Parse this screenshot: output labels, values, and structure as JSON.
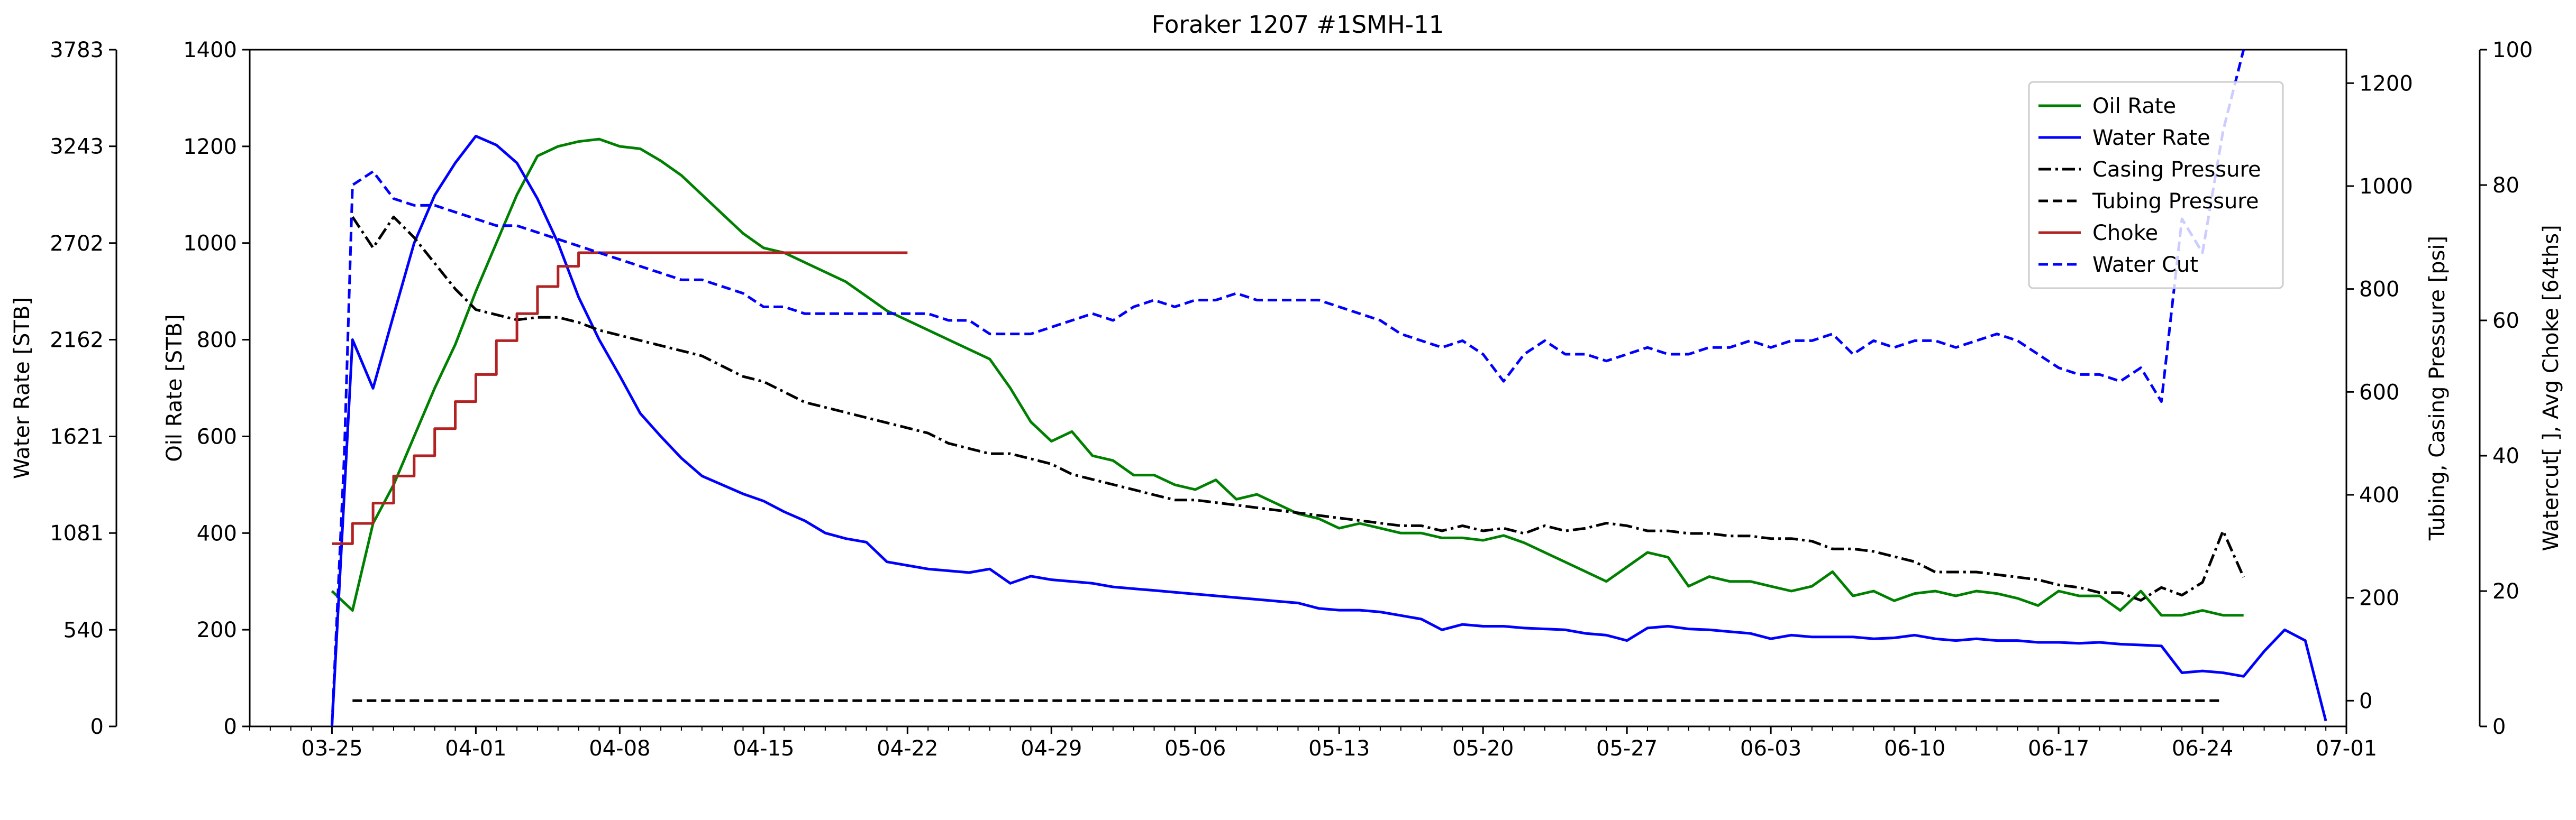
{
  "chart_data": {
    "type": "line",
    "title": "Foraker 1207 #1SMH-11",
    "x_ticks": [
      "03-25",
      "04-01",
      "04-08",
      "04-15",
      "04-22",
      "04-29",
      "05-06",
      "05-13",
      "05-20",
      "05-27",
      "06-03",
      "06-10",
      "06-17",
      "06-24",
      "07-01"
    ],
    "x_range": [
      -4,
      98
    ],
    "axes": {
      "water_rate": {
        "label": "Water Rate [STB]",
        "range": [
          0,
          3783
        ],
        "ticks": [
          0,
          540,
          1081,
          1621,
          2162,
          2702,
          3243,
          3783
        ]
      },
      "oil_rate": {
        "label": "Oil Rate [STB]",
        "range": [
          0,
          1400
        ],
        "ticks": [
          0,
          200,
          400,
          600,
          800,
          1000,
          1200,
          1400
        ]
      },
      "pressure": {
        "label": "Tubing, Casing Pressure [psi]",
        "range": [
          -50,
          1265
        ],
        "ticks": [
          0,
          200,
          400,
          600,
          800,
          1000,
          1200
        ]
      },
      "watercut_choke": {
        "label": "Watercut[ ], Avg Choke [64ths]",
        "range": [
          0,
          100
        ],
        "ticks": [
          0,
          20,
          40,
          60,
          80,
          100
        ]
      }
    },
    "legend": {
      "position": "top-right"
    },
    "series": [
      {
        "name": "Oil Rate",
        "axis": "oil_rate",
        "color": "#008000",
        "dash": "solid",
        "x": [
          0,
          1,
          2,
          3,
          4,
          5,
          6,
          7,
          8,
          9,
          10,
          11,
          12,
          13,
          14,
          15,
          16,
          17,
          18,
          19,
          20,
          21,
          22,
          23,
          24,
          25,
          26,
          27,
          28,
          29,
          30,
          31,
          32,
          33,
          34,
          35,
          36,
          37,
          38,
          39,
          40,
          41,
          42,
          43,
          44,
          45,
          46,
          47,
          48,
          49,
          50,
          51,
          52,
          53,
          54,
          55,
          56,
          57,
          58,
          59,
          60,
          61,
          62,
          63,
          64,
          65,
          66,
          67,
          68,
          69,
          70,
          71,
          72,
          73,
          74,
          75,
          76,
          77,
          78,
          79,
          80,
          81,
          82,
          83,
          84,
          85,
          86,
          87,
          88,
          89,
          90,
          91,
          92,
          93
        ],
        "y": [
          280,
          240,
          420,
          500,
          600,
          700,
          790,
          900,
          1000,
          1100,
          1180,
          1200,
          1210,
          1215,
          1200,
          1195,
          1170,
          1140,
          1100,
          1060,
          1020,
          990,
          980,
          960,
          940,
          920,
          890,
          860,
          840,
          820,
          800,
          780,
          760,
          700,
          630,
          590,
          610,
          560,
          550,
          520,
          520,
          500,
          490,
          510,
          470,
          480,
          460,
          440,
          430,
          410,
          420,
          410,
          400,
          400,
          390,
          390,
          385,
          395,
          380,
          360,
          340,
          320,
          300,
          330,
          360,
          350,
          290,
          310,
          300,
          300,
          290,
          280,
          290,
          320,
          270,
          280,
          260,
          275,
          280,
          270,
          280,
          275,
          265,
          250,
          280,
          270,
          270,
          240,
          280,
          230,
          230,
          240,
          230,
          230
        ]
      },
      {
        "name": "Water Rate",
        "axis": "water_rate",
        "color": "#0000ff",
        "dash": "solid",
        "x": [
          0,
          1,
          2,
          3,
          4,
          5,
          6,
          7,
          8,
          9,
          10,
          11,
          12,
          13,
          14,
          15,
          16,
          17,
          18,
          19,
          20,
          21,
          22,
          23,
          24,
          25,
          26,
          27,
          28,
          29,
          30,
          31,
          32,
          33,
          34,
          35,
          36,
          37,
          38,
          39,
          40,
          41,
          42,
          43,
          44,
          45,
          46,
          47,
          48,
          49,
          50,
          51,
          52,
          53,
          54,
          55,
          56,
          57,
          58,
          59,
          60,
          61,
          62,
          63,
          64,
          65,
          66,
          67,
          68,
          69,
          70,
          71,
          72,
          73,
          74,
          75,
          76,
          77,
          78,
          79,
          80,
          81,
          82,
          83,
          84,
          85,
          86,
          87,
          88,
          89,
          90,
          91,
          92,
          93,
          94,
          95,
          96,
          97
        ],
        "y": [
          0,
          2162,
          1890,
          2300,
          2702,
          2970,
          3150,
          3300,
          3250,
          3150,
          2950,
          2702,
          2400,
          2162,
          1960,
          1750,
          1621,
          1500,
          1400,
          1350,
          1300,
          1260,
          1200,
          1150,
          1081,
          1050,
          1030,
          920,
          900,
          880,
          870,
          860,
          880,
          800,
          840,
          820,
          810,
          800,
          780,
          770,
          760,
          750,
          740,
          730,
          720,
          710,
          700,
          690,
          660,
          650,
          650,
          640,
          620,
          600,
          540,
          570,
          560,
          560,
          550,
          545,
          540,
          520,
          510,
          480,
          550,
          560,
          545,
          540,
          530,
          520,
          490,
          510,
          500,
          500,
          500,
          490,
          495,
          510,
          490,
          480,
          490,
          480,
          480,
          470,
          470,
          465,
          470,
          460,
          455,
          450,
          300,
          310,
          300,
          280,
          420,
          540,
          480,
          30
        ]
      },
      {
        "name": "Casing Pressure",
        "axis": "pressure",
        "color": "#000000",
        "dash": "dashdot",
        "x": [
          1,
          2,
          3,
          4,
          5,
          6,
          7,
          8,
          9,
          10,
          11,
          12,
          13,
          14,
          15,
          16,
          17,
          18,
          19,
          20,
          21,
          22,
          23,
          24,
          25,
          26,
          27,
          28,
          29,
          30,
          31,
          32,
          33,
          34,
          35,
          36,
          37,
          38,
          39,
          40,
          41,
          42,
          43,
          44,
          45,
          46,
          47,
          48,
          49,
          50,
          51,
          52,
          53,
          54,
          55,
          56,
          57,
          58,
          59,
          60,
          61,
          62,
          63,
          64,
          65,
          66,
          67,
          68,
          69,
          70,
          71,
          72,
          73,
          74,
          75,
          76,
          77,
          78,
          79,
          80,
          81,
          82,
          83,
          84,
          85,
          86,
          87,
          88,
          89,
          90,
          91,
          92,
          93
        ],
        "y": [
          940,
          880,
          940,
          900,
          850,
          800,
          760,
          750,
          740,
          745,
          745,
          735,
          720,
          710,
          700,
          690,
          680,
          670,
          650,
          630,
          620,
          600,
          580,
          570,
          560,
          550,
          540,
          530,
          520,
          500,
          490,
          480,
          480,
          470,
          460,
          440,
          430,
          420,
          410,
          400,
          390,
          390,
          385,
          380,
          375,
          370,
          365,
          360,
          355,
          350,
          345,
          340,
          340,
          330,
          340,
          330,
          335,
          325,
          340,
          330,
          335,
          345,
          340,
          330,
          330,
          325,
          325,
          320,
          320,
          315,
          315,
          310,
          295,
          295,
          290,
          280,
          270,
          250,
          250,
          250,
          245,
          240,
          235,
          225,
          220,
          210,
          210,
          195,
          220,
          205,
          230,
          330,
          240
        ]
      },
      {
        "name": "Tubing Pressure",
        "axis": "pressure",
        "color": "#000000",
        "dash": "dashed",
        "x": [
          1,
          92
        ],
        "y": [
          0,
          0
        ]
      },
      {
        "name": "Choke",
        "axis": "watercut_choke",
        "color": "#b22222",
        "dash": "solid",
        "step_x": [
          0,
          1,
          2,
          3,
          4,
          5,
          6,
          7,
          8,
          9,
          10,
          11,
          12,
          28
        ],
        "step_y": [
          27,
          30,
          33,
          37,
          40,
          44,
          48,
          52,
          57,
          61,
          65,
          68,
          70,
          70
        ]
      },
      {
        "name": "Water Cut",
        "axis": "watercut_choke",
        "color": "#0000ff",
        "dash": "dashed",
        "x": [
          0,
          0.6,
          1,
          2,
          3,
          4,
          5,
          6,
          7,
          8,
          9,
          10,
          11,
          12,
          13,
          14,
          15,
          16,
          17,
          18,
          19,
          20,
          21,
          22,
          23,
          24,
          25,
          26,
          27,
          28,
          29,
          30,
          31,
          32,
          33,
          34,
          35,
          36,
          37,
          38,
          39,
          40,
          41,
          42,
          43,
          44,
          45,
          46,
          47,
          48,
          49,
          50,
          51,
          52,
          53,
          54,
          55,
          56,
          57,
          58,
          59,
          60,
          61,
          62,
          63,
          64,
          65,
          66,
          67,
          68,
          69,
          70,
          71,
          72,
          73,
          74,
          75,
          76,
          77,
          78,
          79,
          80,
          81,
          82,
          83,
          84,
          85,
          86,
          87,
          88,
          89,
          90,
          91,
          92,
          93
        ],
        "y": [
          0,
          40,
          80,
          82,
          78,
          77,
          77,
          76,
          75,
          74,
          74,
          73,
          72,
          71,
          70,
          69,
          68,
          67,
          66,
          66,
          65,
          64,
          62,
          62,
          61,
          61,
          61,
          61,
          61,
          61,
          61,
          60,
          60,
          58,
          58,
          58,
          59,
          60,
          61,
          60,
          62,
          63,
          62,
          63,
          63,
          64,
          63,
          63,
          63,
          63,
          62,
          61,
          60,
          58,
          57,
          56,
          57,
          55,
          51,
          55,
          57,
          55,
          55,
          54,
          55,
          56,
          55,
          55,
          56,
          56,
          57,
          56,
          57,
          57,
          58,
          55,
          57,
          56,
          57,
          57,
          56,
          57,
          58,
          57,
          55,
          53,
          52,
          52,
          51,
          53,
          48,
          75,
          70,
          88,
          100
        ]
      }
    ]
  }
}
